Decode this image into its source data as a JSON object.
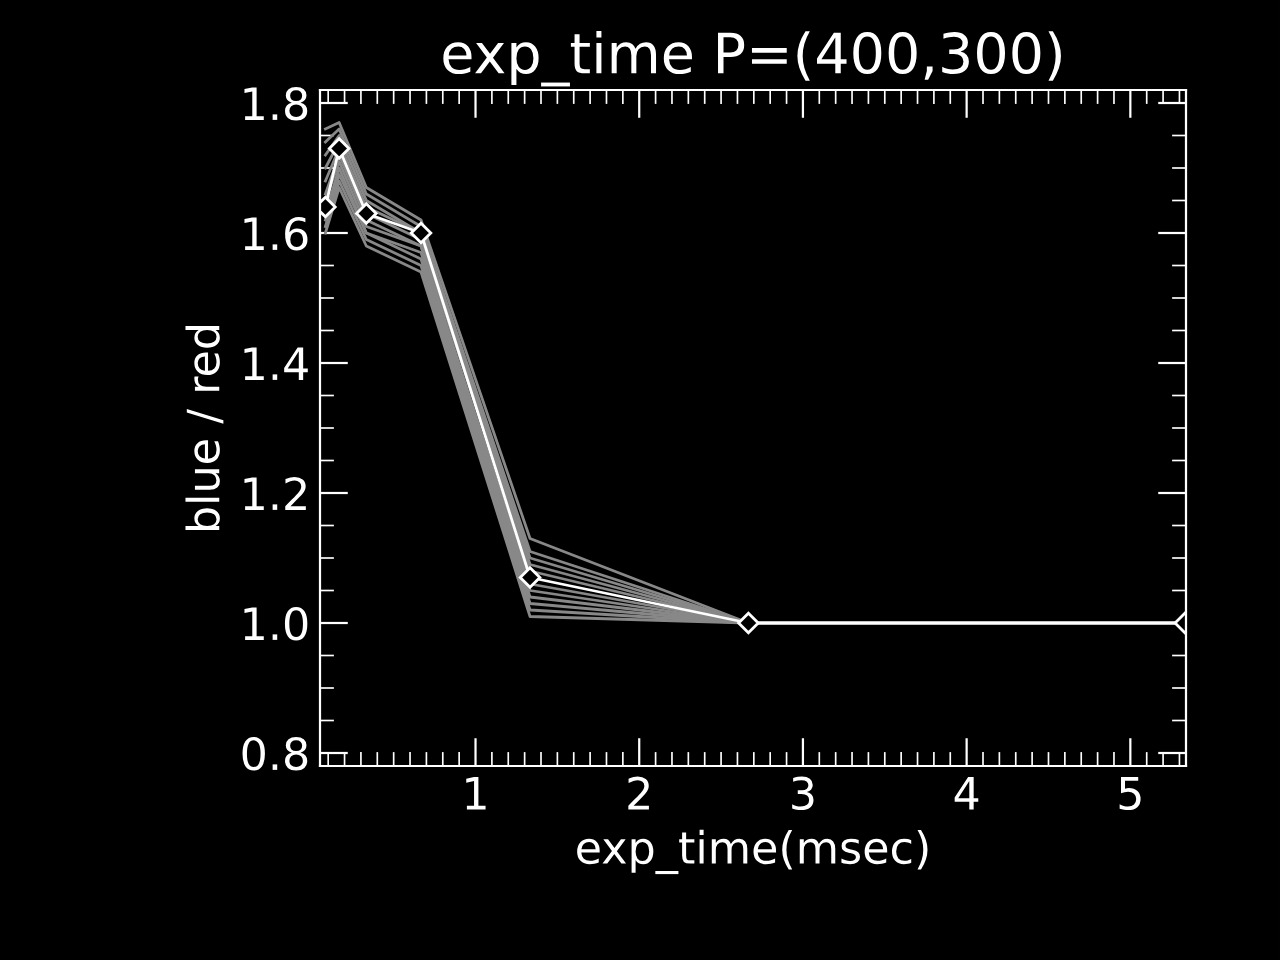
{
  "chart_data": {
    "type": "line",
    "title": "exp_time P=(400,300)",
    "xlabel": "exp_time(msec)",
    "ylabel": "blue / red",
    "x": [
      0.083,
      0.167,
      0.333,
      0.667,
      1.333,
      2.667,
      5.333
    ],
    "series": [
      {
        "color": "#888888",
        "values": [
          1.76,
          1.77,
          1.67,
          1.62,
          1.13,
          1.0,
          1.0
        ]
      },
      {
        "color": "#888888",
        "values": [
          1.74,
          1.76,
          1.66,
          1.61,
          1.11,
          1.0,
          1.0
        ]
      },
      {
        "color": "#888888",
        "values": [
          1.72,
          1.75,
          1.65,
          1.6,
          1.1,
          1.0,
          1.0
        ]
      },
      {
        "color": "#888888",
        "values": [
          1.7,
          1.74,
          1.64,
          1.6,
          1.09,
          1.0,
          1.0
        ]
      },
      {
        "color": "#888888",
        "values": [
          1.68,
          1.73,
          1.63,
          1.59,
          1.08,
          1.0,
          1.0
        ]
      },
      {
        "color": "#888888",
        "values": [
          1.66,
          1.72,
          1.62,
          1.58,
          1.06,
          1.0,
          1.0
        ]
      },
      {
        "color": "#888888",
        "values": [
          1.65,
          1.71,
          1.61,
          1.58,
          1.05,
          1.0,
          1.0
        ]
      },
      {
        "color": "#888888",
        "values": [
          1.63,
          1.7,
          1.6,
          1.57,
          1.04,
          1.0,
          1.0
        ]
      },
      {
        "color": "#888888",
        "values": [
          1.62,
          1.69,
          1.6,
          1.56,
          1.03,
          1.0,
          1.0
        ]
      },
      {
        "color": "#888888",
        "values": [
          1.61,
          1.68,
          1.59,
          1.55,
          1.02,
          1.0,
          1.0
        ]
      },
      {
        "color": "#888888",
        "values": [
          1.6,
          1.67,
          1.58,
          1.54,
          1.01,
          1.0,
          1.0
        ]
      },
      {
        "color": "#ffffff",
        "values": [
          1.64,
          1.73,
          1.63,
          1.6,
          1.07,
          1.0,
          1.0
        ],
        "marker": "diamond"
      }
    ],
    "xlim": [
      0.05,
      5.34
    ],
    "xticks": [
      1,
      2,
      3,
      4,
      5
    ],
    "ylim": [
      0.78,
      1.82
    ],
    "yticks": [
      {
        "value": 0.8,
        "label": "0.8"
      },
      {
        "value": 1.0,
        "label": "1.0"
      },
      {
        "value": 1.2,
        "label": "1.2"
      },
      {
        "value": 1.4,
        "label": "1.4"
      },
      {
        "value": 1.6,
        "label": "1.6"
      },
      {
        "value": 1.8,
        "label": "1.8"
      }
    ],
    "grid": false,
    "legend": false
  }
}
